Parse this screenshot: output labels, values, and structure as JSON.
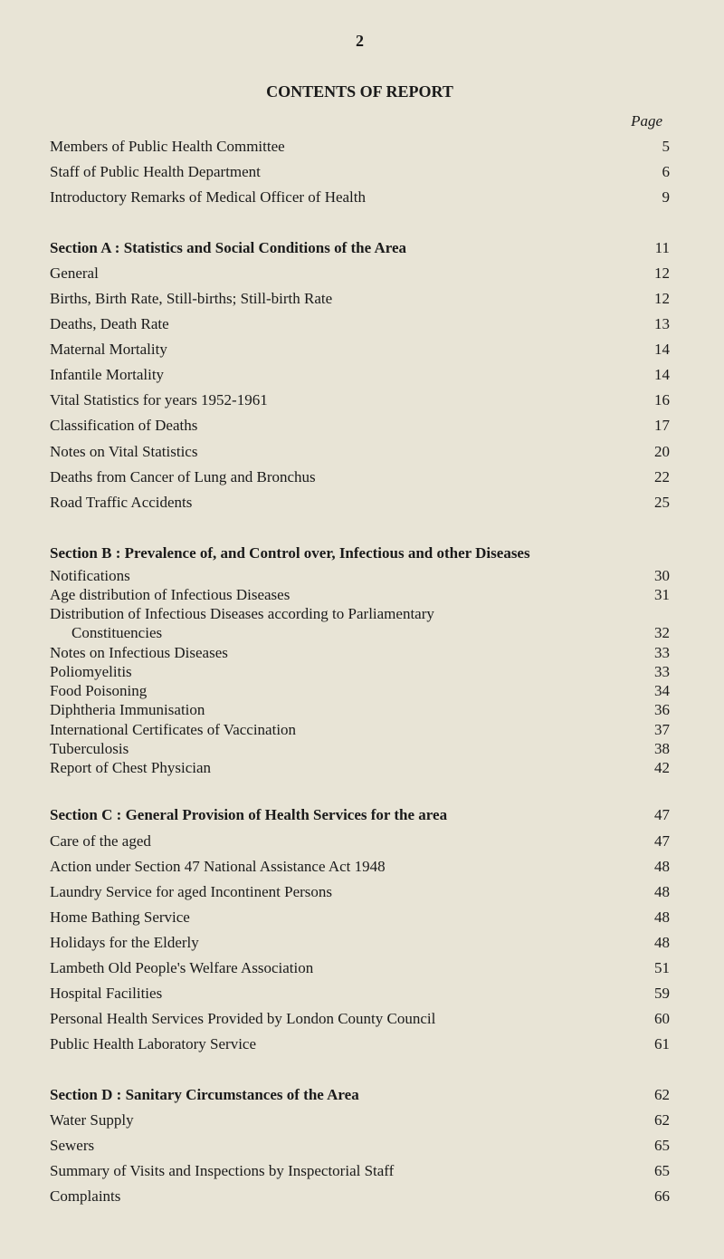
{
  "page_number": "2",
  "title": "CONTENTS OF REPORT",
  "page_header": "Page",
  "front_matter": [
    {
      "label": "Members of Public Health Committee",
      "page": "5"
    },
    {
      "label": "Staff of Public Health Department",
      "page": "6"
    },
    {
      "label": "Introductory Remarks of Medical Officer of Health",
      "page": "9"
    }
  ],
  "section_a": {
    "heading": "Section A : Statistics and Social Conditions of the Area",
    "heading_page": "11",
    "items": [
      {
        "label": "General",
        "page": "12"
      },
      {
        "label": "Births, Birth Rate, Still-births; Still-birth Rate",
        "page": "12"
      },
      {
        "label": "Deaths, Death Rate",
        "page": "13"
      },
      {
        "label": "Maternal Mortality",
        "page": "14"
      },
      {
        "label": "Infantile Mortality",
        "page": "14"
      },
      {
        "label": "Vital Statistics for years 1952-1961",
        "page": "16"
      },
      {
        "label": "Classification of Deaths",
        "page": "17"
      },
      {
        "label": "Notes on Vital Statistics",
        "page": "20"
      },
      {
        "label": "Deaths from Cancer of Lung and Bronchus",
        "page": "22"
      },
      {
        "label": "Road Traffic Accidents",
        "page": "25"
      }
    ]
  },
  "section_b": {
    "heading": "Section B : Prevalence of, and Control over, Infectious and other Diseases",
    "items": [
      {
        "label": "Notifications",
        "page": "30"
      },
      {
        "label": "Age distribution of Infectious Diseases",
        "page": "31"
      },
      {
        "label": "Distribution of Infectious Diseases according to Parliamentary",
        "page": ""
      },
      {
        "label": "Constituencies",
        "page": "32",
        "indent": true
      },
      {
        "label": "Notes on Infectious Diseases",
        "page": "33"
      },
      {
        "label": "Poliomyelitis",
        "page": "33"
      },
      {
        "label": "Food Poisoning",
        "page": "34"
      },
      {
        "label": "Diphtheria Immunisation",
        "page": "36"
      },
      {
        "label": "International Certificates of Vaccination",
        "page": "37"
      },
      {
        "label": "Tuberculosis",
        "page": "38"
      },
      {
        "label": "Report of Chest Physician",
        "page": "42"
      }
    ]
  },
  "section_c": {
    "heading": "Section C : General Provision of Health Services for the area",
    "heading_page": "47",
    "items": [
      {
        "label": "Care of the aged",
        "page": "47"
      },
      {
        "label": "Action under Section 47 National Assistance Act 1948",
        "page": "48"
      },
      {
        "label": "Laundry Service for aged Incontinent Persons",
        "page": "48"
      },
      {
        "label": "Home Bathing Service",
        "page": "48"
      },
      {
        "label": "Holidays for the Elderly",
        "page": "48"
      },
      {
        "label": "Lambeth Old People's Welfare Association",
        "page": "51"
      },
      {
        "label": "Hospital Facilities",
        "page": "59"
      },
      {
        "label": "Personal Health Services Provided by London County Council",
        "page": "60"
      },
      {
        "label": "Public Health Laboratory Service",
        "page": "61"
      }
    ]
  },
  "section_d": {
    "heading": "Section D : Sanitary Circumstances of the Area",
    "heading_page": "62",
    "items": [
      {
        "label": "Water Supply",
        "page": "62"
      },
      {
        "label": "Sewers",
        "page": "65"
      },
      {
        "label": "Summary of Visits and Inspections by Inspectorial Staff",
        "page": "65"
      },
      {
        "label": "Complaints",
        "page": "66"
      }
    ]
  }
}
